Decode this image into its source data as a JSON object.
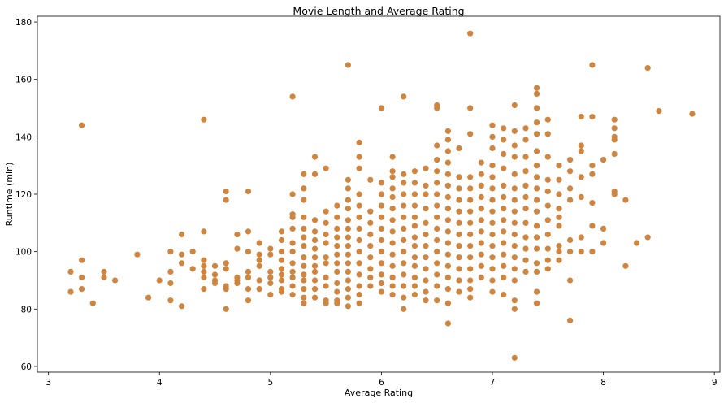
{
  "colors": {
    "marker": "#cd853f",
    "axis": "#000000",
    "background": "#ffffff"
  },
  "chart_data": {
    "type": "scatter",
    "title": "Movie Length and Average Rating",
    "xlabel": "Average Rating",
    "ylabel": "Runtime (min)",
    "xlim": [
      2.9,
      9.05
    ],
    "ylim": [
      58,
      182
    ],
    "xticks": [
      "3",
      "4",
      "5",
      "6",
      "7",
      "8",
      "9"
    ],
    "yticks": [
      "60",
      "80",
      "100",
      "120",
      "140",
      "160",
      "180"
    ],
    "grid": false,
    "legend": "none",
    "points": [
      [
        3.2,
        93
      ],
      [
        3.2,
        86
      ],
      [
        3.3,
        144
      ],
      [
        3.3,
        97
      ],
      [
        3.3,
        91
      ],
      [
        3.3,
        87
      ],
      [
        3.4,
        82
      ],
      [
        3.5,
        93
      ],
      [
        3.5,
        91
      ],
      [
        3.6,
        90
      ],
      [
        3.8,
        99
      ],
      [
        3.9,
        84
      ],
      [
        4.0,
        90
      ],
      [
        4.1,
        100
      ],
      [
        4.1,
        93
      ],
      [
        4.1,
        89
      ],
      [
        4.1,
        83
      ],
      [
        4.2,
        106
      ],
      [
        4.2,
        99
      ],
      [
        4.2,
        96
      ],
      [
        4.2,
        81
      ],
      [
        4.3,
        100
      ],
      [
        4.3,
        94
      ],
      [
        4.4,
        146
      ],
      [
        4.4,
        107
      ],
      [
        4.4,
        97
      ],
      [
        4.4,
        95
      ],
      [
        4.4,
        93
      ],
      [
        4.4,
        91
      ],
      [
        4.4,
        87
      ],
      [
        4.5,
        95
      ],
      [
        4.5,
        92
      ],
      [
        4.5,
        90
      ],
      [
        4.5,
        89
      ],
      [
        4.6,
        121
      ],
      [
        4.6,
        118
      ],
      [
        4.6,
        96
      ],
      [
        4.6,
        94
      ],
      [
        4.6,
        88
      ],
      [
        4.6,
        87
      ],
      [
        4.6,
        80
      ],
      [
        4.7,
        106
      ],
      [
        4.7,
        101
      ],
      [
        4.7,
        91
      ],
      [
        4.7,
        90
      ],
      [
        4.7,
        89
      ],
      [
        4.8,
        121
      ],
      [
        4.8,
        107
      ],
      [
        4.8,
        100
      ],
      [
        4.8,
        93
      ],
      [
        4.8,
        91
      ],
      [
        4.8,
        87
      ],
      [
        4.8,
        83
      ],
      [
        4.9,
        103
      ],
      [
        4.9,
        99
      ],
      [
        4.9,
        97
      ],
      [
        4.9,
        95
      ],
      [
        4.9,
        90
      ],
      [
        4.9,
        87
      ],
      [
        5.0,
        101
      ],
      [
        5.0,
        99
      ],
      [
        5.0,
        93
      ],
      [
        5.0,
        91
      ],
      [
        5.0,
        89
      ],
      [
        5.0,
        85
      ],
      [
        5.1,
        107
      ],
      [
        5.1,
        104
      ],
      [
        5.1,
        100
      ],
      [
        5.1,
        97
      ],
      [
        5.1,
        94
      ],
      [
        5.1,
        92
      ],
      [
        5.1,
        90
      ],
      [
        5.1,
        87
      ],
      [
        5.1,
        86
      ],
      [
        5.2,
        154
      ],
      [
        5.2,
        120
      ],
      [
        5.2,
        113
      ],
      [
        5.2,
        112
      ],
      [
        5.2,
        108
      ],
      [
        5.2,
        103
      ],
      [
        5.2,
        100
      ],
      [
        5.2,
        96
      ],
      [
        5.2,
        93
      ],
      [
        5.2,
        91
      ],
      [
        5.2,
        88
      ],
      [
        5.2,
        85
      ],
      [
        5.3,
        127
      ],
      [
        5.3,
        122
      ],
      [
        5.3,
        118
      ],
      [
        5.3,
        112
      ],
      [
        5.3,
        108
      ],
      [
        5.3,
        105
      ],
      [
        5.3,
        102
      ],
      [
        5.3,
        98
      ],
      [
        5.3,
        95
      ],
      [
        5.3,
        92
      ],
      [
        5.3,
        90
      ],
      [
        5.3,
        87
      ],
      [
        5.3,
        84
      ],
      [
        5.3,
        82
      ],
      [
        5.4,
        133
      ],
      [
        5.4,
        127
      ],
      [
        5.4,
        111
      ],
      [
        5.4,
        107
      ],
      [
        5.4,
        104
      ],
      [
        5.4,
        101
      ],
      [
        5.4,
        98
      ],
      [
        5.4,
        95
      ],
      [
        5.4,
        93
      ],
      [
        5.4,
        90
      ],
      [
        5.4,
        87
      ],
      [
        5.4,
        84
      ],
      [
        5.5,
        129
      ],
      [
        5.5,
        114
      ],
      [
        5.5,
        110
      ],
      [
        5.5,
        106
      ],
      [
        5.5,
        103
      ],
      [
        5.5,
        98
      ],
      [
        5.5,
        96
      ],
      [
        5.5,
        91
      ],
      [
        5.5,
        88
      ],
      [
        5.5,
        83
      ],
      [
        5.5,
        82
      ],
      [
        5.6,
        116
      ],
      [
        5.6,
        112
      ],
      [
        5.6,
        108
      ],
      [
        5.6,
        105
      ],
      [
        5.6,
        102
      ],
      [
        5.6,
        99
      ],
      [
        5.6,
        96
      ],
      [
        5.6,
        93
      ],
      [
        5.6,
        89
      ],
      [
        5.6,
        86
      ],
      [
        5.6,
        83
      ],
      [
        5.6,
        82
      ],
      [
        5.7,
        165
      ],
      [
        5.7,
        125
      ],
      [
        5.7,
        122
      ],
      [
        5.7,
        118
      ],
      [
        5.7,
        115
      ],
      [
        5.7,
        111
      ],
      [
        5.7,
        108
      ],
      [
        5.7,
        105
      ],
      [
        5.7,
        102
      ],
      [
        5.7,
        99
      ],
      [
        5.7,
        96
      ],
      [
        5.7,
        93
      ],
      [
        5.7,
        90
      ],
      [
        5.7,
        87
      ],
      [
        5.7,
        84
      ],
      [
        5.7,
        81
      ],
      [
        5.8,
        138
      ],
      [
        5.8,
        133
      ],
      [
        5.8,
        129
      ],
      [
        5.8,
        120
      ],
      [
        5.8,
        116
      ],
      [
        5.8,
        112
      ],
      [
        5.8,
        108
      ],
      [
        5.8,
        104
      ],
      [
        5.8,
        100
      ],
      [
        5.8,
        96
      ],
      [
        5.8,
        92
      ],
      [
        5.8,
        88
      ],
      [
        5.8,
        85
      ],
      [
        5.8,
        82
      ],
      [
        5.9,
        125
      ],
      [
        5.9,
        114
      ],
      [
        5.9,
        110
      ],
      [
        5.9,
        106
      ],
      [
        5.9,
        102
      ],
      [
        5.9,
        98
      ],
      [
        5.9,
        94
      ],
      [
        5.9,
        91
      ],
      [
        5.9,
        88
      ],
      [
        6.0,
        150
      ],
      [
        6.0,
        124
      ],
      [
        6.0,
        120
      ],
      [
        6.0,
        116
      ],
      [
        6.0,
        112
      ],
      [
        6.0,
        108
      ],
      [
        6.0,
        104
      ],
      [
        6.0,
        100
      ],
      [
        6.0,
        96
      ],
      [
        6.0,
        92
      ],
      [
        6.0,
        89
      ],
      [
        6.0,
        86
      ],
      [
        6.1,
        133
      ],
      [
        6.1,
        128
      ],
      [
        6.1,
        126
      ],
      [
        6.1,
        122
      ],
      [
        6.1,
        119
      ],
      [
        6.1,
        115
      ],
      [
        6.1,
        111
      ],
      [
        6.1,
        107
      ],
      [
        6.1,
        103
      ],
      [
        6.1,
        99
      ],
      [
        6.1,
        95
      ],
      [
        6.1,
        91
      ],
      [
        6.1,
        88
      ],
      [
        6.1,
        85
      ],
      [
        6.2,
        154
      ],
      [
        6.2,
        127
      ],
      [
        6.2,
        124
      ],
      [
        6.2,
        120
      ],
      [
        6.2,
        116
      ],
      [
        6.2,
        112
      ],
      [
        6.2,
        108
      ],
      [
        6.2,
        104
      ],
      [
        6.2,
        100
      ],
      [
        6.2,
        96
      ],
      [
        6.2,
        92
      ],
      [
        6.2,
        88
      ],
      [
        6.2,
        84
      ],
      [
        6.2,
        80
      ],
      [
        6.3,
        128
      ],
      [
        6.3,
        124
      ],
      [
        6.3,
        120
      ],
      [
        6.3,
        116
      ],
      [
        6.3,
        112
      ],
      [
        6.3,
        109
      ],
      [
        6.3,
        105
      ],
      [
        6.3,
        102
      ],
      [
        6.3,
        98
      ],
      [
        6.3,
        95
      ],
      [
        6.3,
        91
      ],
      [
        6.3,
        88
      ],
      [
        6.3,
        85
      ],
      [
        6.4,
        129
      ],
      [
        6.4,
        123
      ],
      [
        6.4,
        120
      ],
      [
        6.4,
        115
      ],
      [
        6.4,
        110
      ],
      [
        6.4,
        106
      ],
      [
        6.4,
        102
      ],
      [
        6.4,
        98
      ],
      [
        6.4,
        94
      ],
      [
        6.4,
        90
      ],
      [
        6.4,
        86
      ],
      [
        6.4,
        83
      ],
      [
        6.5,
        151
      ],
      [
        6.5,
        150
      ],
      [
        6.5,
        137
      ],
      [
        6.5,
        132
      ],
      [
        6.5,
        128
      ],
      [
        6.5,
        124
      ],
      [
        6.5,
        120
      ],
      [
        6.5,
        116
      ],
      [
        6.5,
        112
      ],
      [
        6.5,
        108
      ],
      [
        6.5,
        104
      ],
      [
        6.5,
        100
      ],
      [
        6.5,
        96
      ],
      [
        6.5,
        92
      ],
      [
        6.5,
        88
      ],
      [
        6.5,
        83
      ],
      [
        6.6,
        142
      ],
      [
        6.6,
        139
      ],
      [
        6.6,
        135
      ],
      [
        6.6,
        131
      ],
      [
        6.6,
        127
      ],
      [
        6.6,
        123
      ],
      [
        6.6,
        119
      ],
      [
        6.6,
        115
      ],
      [
        6.6,
        111
      ],
      [
        6.6,
        107
      ],
      [
        6.6,
        103
      ],
      [
        6.6,
        99
      ],
      [
        6.6,
        95
      ],
      [
        6.6,
        91
      ],
      [
        6.6,
        87
      ],
      [
        6.6,
        82
      ],
      [
        6.6,
        75
      ],
      [
        6.7,
        136
      ],
      [
        6.7,
        126
      ],
      [
        6.7,
        122
      ],
      [
        6.7,
        118
      ],
      [
        6.7,
        114
      ],
      [
        6.7,
        110
      ],
      [
        6.7,
        106
      ],
      [
        6.7,
        102
      ],
      [
        6.7,
        98
      ],
      [
        6.7,
        94
      ],
      [
        6.7,
        90
      ],
      [
        6.7,
        86
      ],
      [
        6.8,
        176
      ],
      [
        6.8,
        150
      ],
      [
        6.8,
        141
      ],
      [
        6.8,
        126
      ],
      [
        6.8,
        122
      ],
      [
        6.8,
        118
      ],
      [
        6.8,
        114
      ],
      [
        6.8,
        110
      ],
      [
        6.8,
        106
      ],
      [
        6.8,
        102
      ],
      [
        6.8,
        98
      ],
      [
        6.8,
        94
      ],
      [
        6.8,
        90
      ],
      [
        6.8,
        87
      ],
      [
        6.8,
        84
      ],
      [
        6.9,
        131
      ],
      [
        6.9,
        127
      ],
      [
        6.9,
        123
      ],
      [
        6.9,
        119
      ],
      [
        6.9,
        115
      ],
      [
        6.9,
        111
      ],
      [
        6.9,
        107
      ],
      [
        6.9,
        103
      ],
      [
        6.9,
        99
      ],
      [
        6.9,
        95
      ],
      [
        6.9,
        91
      ],
      [
        7.0,
        144
      ],
      [
        7.0,
        140
      ],
      [
        7.0,
        136
      ],
      [
        7.0,
        130
      ],
      [
        7.0,
        126
      ],
      [
        7.0,
        122
      ],
      [
        7.0,
        118
      ],
      [
        7.0,
        114
      ],
      [
        7.0,
        110
      ],
      [
        7.0,
        106
      ],
      [
        7.0,
        102
      ],
      [
        7.0,
        98
      ],
      [
        7.0,
        94
      ],
      [
        7.0,
        90
      ],
      [
        7.0,
        86
      ],
      [
        7.1,
        143
      ],
      [
        7.1,
        139
      ],
      [
        7.1,
        134
      ],
      [
        7.1,
        129
      ],
      [
        7.1,
        123
      ],
      [
        7.1,
        119
      ],
      [
        7.1,
        115
      ],
      [
        7.1,
        111
      ],
      [
        7.1,
        107
      ],
      [
        7.1,
        103
      ],
      [
        7.1,
        99
      ],
      [
        7.1,
        95
      ],
      [
        7.1,
        91
      ],
      [
        7.1,
        85
      ],
      [
        7.2,
        151
      ],
      [
        7.2,
        142
      ],
      [
        7.2,
        137
      ],
      [
        7.2,
        133
      ],
      [
        7.2,
        127
      ],
      [
        7.2,
        122
      ],
      [
        7.2,
        118
      ],
      [
        7.2,
        114
      ],
      [
        7.2,
        110
      ],
      [
        7.2,
        106
      ],
      [
        7.2,
        102
      ],
      [
        7.2,
        98
      ],
      [
        7.2,
        94
      ],
      [
        7.2,
        90
      ],
      [
        7.2,
        83
      ],
      [
        7.2,
        80
      ],
      [
        7.2,
        63
      ],
      [
        7.3,
        143
      ],
      [
        7.3,
        139
      ],
      [
        7.3,
        133
      ],
      [
        7.3,
        128
      ],
      [
        7.3,
        123
      ],
      [
        7.3,
        119
      ],
      [
        7.3,
        115
      ],
      [
        7.3,
        110
      ],
      [
        7.3,
        105
      ],
      [
        7.3,
        101
      ],
      [
        7.3,
        97
      ],
      [
        7.3,
        93
      ],
      [
        7.4,
        157
      ],
      [
        7.4,
        155
      ],
      [
        7.4,
        150
      ],
      [
        7.4,
        145
      ],
      [
        7.4,
        141
      ],
      [
        7.4,
        135
      ],
      [
        7.4,
        130
      ],
      [
        7.4,
        126
      ],
      [
        7.4,
        122
      ],
      [
        7.4,
        118
      ],
      [
        7.4,
        114
      ],
      [
        7.4,
        109
      ],
      [
        7.4,
        105
      ],
      [
        7.4,
        101
      ],
      [
        7.4,
        96
      ],
      [
        7.4,
        93
      ],
      [
        7.4,
        86
      ],
      [
        7.4,
        82
      ],
      [
        7.5,
        146
      ],
      [
        7.5,
        141
      ],
      [
        7.5,
        133
      ],
      [
        7.5,
        125
      ],
      [
        7.5,
        121
      ],
      [
        7.5,
        116
      ],
      [
        7.5,
        111
      ],
      [
        7.5,
        106
      ],
      [
        7.5,
        101
      ],
      [
        7.5,
        97
      ],
      [
        7.5,
        94
      ],
      [
        7.6,
        130
      ],
      [
        7.6,
        125
      ],
      [
        7.6,
        120
      ],
      [
        7.6,
        115
      ],
      [
        7.6,
        112
      ],
      [
        7.6,
        109
      ],
      [
        7.6,
        102
      ],
      [
        7.6,
        100
      ],
      [
        7.6,
        97
      ],
      [
        7.7,
        132
      ],
      [
        7.7,
        128
      ],
      [
        7.7,
        122
      ],
      [
        7.7,
        118
      ],
      [
        7.7,
        104
      ],
      [
        7.7,
        100
      ],
      [
        7.7,
        90
      ],
      [
        7.7,
        76
      ],
      [
        7.8,
        147
      ],
      [
        7.8,
        137
      ],
      [
        7.8,
        135
      ],
      [
        7.8,
        126
      ],
      [
        7.8,
        119
      ],
      [
        7.8,
        105
      ],
      [
        7.8,
        100
      ],
      [
        7.9,
        165
      ],
      [
        7.9,
        147
      ],
      [
        7.9,
        130
      ],
      [
        7.9,
        127
      ],
      [
        7.9,
        117
      ],
      [
        7.9,
        109
      ],
      [
        7.9,
        100
      ],
      [
        8.0,
        132
      ],
      [
        8.0,
        108
      ],
      [
        8.0,
        103
      ],
      [
        8.1,
        146
      ],
      [
        8.1,
        143
      ],
      [
        8.1,
        140
      ],
      [
        8.1,
        139
      ],
      [
        8.1,
        134
      ],
      [
        8.1,
        121
      ],
      [
        8.1,
        120
      ],
      [
        8.2,
        118
      ],
      [
        8.2,
        95
      ],
      [
        8.3,
        103
      ],
      [
        8.4,
        164
      ],
      [
        8.4,
        105
      ],
      [
        8.5,
        149
      ],
      [
        8.8,
        148
      ]
    ]
  }
}
